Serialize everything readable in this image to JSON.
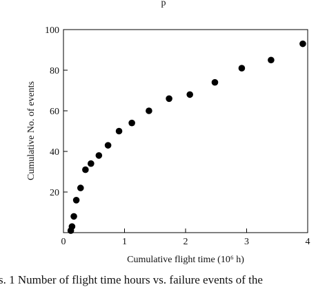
{
  "header": {
    "fragment": "p"
  },
  "chart_data": {
    "type": "scatter",
    "title": "",
    "xlabel": "Cumulative flight time (10⁶ h)",
    "ylabel": "Cumulative No. of events",
    "xlim": [
      0,
      4
    ],
    "ylim": [
      0,
      100
    ],
    "xticks": [
      0,
      1,
      2,
      3,
      4
    ],
    "yticks": [
      20,
      40,
      60,
      80,
      100
    ],
    "x_tick_labels": [
      "0",
      "1",
      "2",
      "3",
      "4"
    ],
    "y_tick_labels": [
      "20",
      "40",
      "60",
      "80",
      "100"
    ],
    "grid": false,
    "legend": "none",
    "marker_color": "#000000",
    "series": [
      {
        "points": [
          {
            "x": 0.12,
            "y": 1
          },
          {
            "x": 0.14,
            "y": 3
          },
          {
            "x": 0.17,
            "y": 8
          },
          {
            "x": 0.21,
            "y": 16
          },
          {
            "x": 0.28,
            "y": 22
          },
          {
            "x": 0.36,
            "y": 31
          },
          {
            "x": 0.45,
            "y": 34
          },
          {
            "x": 0.58,
            "y": 38
          },
          {
            "x": 0.73,
            "y": 43
          },
          {
            "x": 0.91,
            "y": 50
          },
          {
            "x": 1.12,
            "y": 54
          },
          {
            "x": 1.4,
            "y": 60
          },
          {
            "x": 1.73,
            "y": 66
          },
          {
            "x": 2.07,
            "y": 68
          },
          {
            "x": 2.48,
            "y": 74
          },
          {
            "x": 2.92,
            "y": 81
          },
          {
            "x": 3.4,
            "y": 85
          },
          {
            "x": 3.92,
            "y": 93
          }
        ]
      }
    ]
  },
  "caption": {
    "text": "s. 1    Number of flight time hours vs. failure events of the"
  }
}
